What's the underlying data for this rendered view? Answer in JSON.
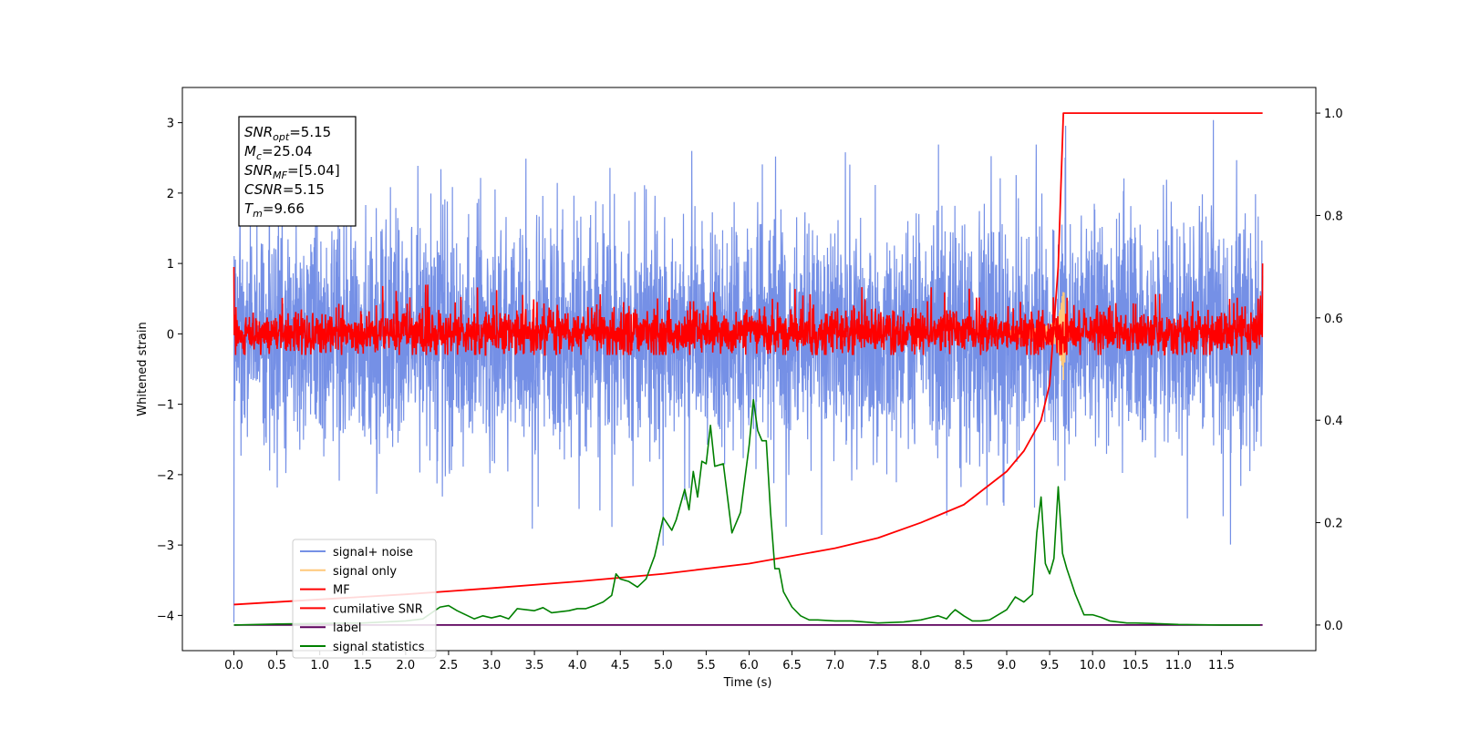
{
  "chart_data": {
    "type": "line",
    "title": "",
    "xlabel": "Time (s)",
    "ylabel": "Whitened strain",
    "xlim": [
      -0.6,
      12.6
    ],
    "ylim": [
      -4.5,
      3.5
    ],
    "y2lim": [
      -0.05,
      1.05
    ],
    "x_ticks": [
      0.0,
      0.5,
      1.0,
      1.5,
      2.0,
      2.5,
      3.0,
      3.5,
      4.0,
      4.5,
      5.0,
      5.5,
      6.0,
      6.5,
      7.0,
      7.5,
      8.0,
      8.5,
      9.0,
      9.5,
      10.0,
      10.5,
      11.0,
      11.5
    ],
    "x_tick_labels": [
      "0.0",
      "0.5",
      "1.0",
      "1.5",
      "2.0",
      "2.5",
      "3.0",
      "3.5",
      "4.0",
      "4.5",
      "5.0",
      "5.5",
      "6.0",
      "6.5",
      "7.0",
      "7.5",
      "8.0",
      "8.5",
      "9.0",
      "9.5",
      "10.0",
      "10.5",
      "11.0",
      "11.5"
    ],
    "y_ticks": [
      -4,
      -3,
      -2,
      -1,
      0,
      1,
      2,
      3
    ],
    "y_tick_labels": [
      "−4",
      "−3",
      "−2",
      "−1",
      "0",
      "1",
      "2",
      "3"
    ],
    "y2_ticks": [
      0.0,
      0.2,
      0.4,
      0.6,
      0.8,
      1.0
    ],
    "y2_tick_labels": [
      "0.0",
      "0.2",
      "0.4",
      "0.6",
      "0.8",
      "1.0"
    ],
    "grid": false,
    "legend_position": "lower-left",
    "colors": {
      "signal_noise": "#7590e6",
      "signal_only": "#ffc87a",
      "mf": "#ff0000",
      "cumulative": "#ff0000",
      "label": "#5c005c",
      "stats": "#008000"
    },
    "annotation": {
      "lines": [
        {
          "main": "SNR",
          "sub": "opt",
          "value": "=5.15"
        },
        {
          "main": "M",
          "sub": "c",
          "value": "=25.04"
        },
        {
          "main": "SNR",
          "sub": "MF",
          "value": "=[5.04]"
        },
        {
          "main": "CSNR",
          "sub": "",
          "value": "=5.15"
        },
        {
          "main": "T",
          "sub": "m",
          "value": "=9.66"
        }
      ]
    },
    "series": [
      {
        "name": "signal+ noise",
        "key": "signal_noise",
        "axis": "left",
        "kind": "noise",
        "t_start": 0.0,
        "t_end": 11.98,
        "typical_range": [
          -1.6,
          1.5
        ],
        "extreme_range": [
          -4.1,
          3.2
        ]
      },
      {
        "name": "signal only",
        "key": "signal_only",
        "axis": "left",
        "kind": "chirp",
        "peak_time": 9.66,
        "peak_amplitude": 0.8
      },
      {
        "name": "MF",
        "key": "mf",
        "axis": "left",
        "kind": "noise",
        "t_start": 0.0,
        "t_end": 11.98,
        "typical_range": [
          -0.3,
          0.5
        ],
        "extreme_range": [
          -0.5,
          0.95
        ]
      },
      {
        "name": "cumilative SNR",
        "key": "cumulative",
        "axis": "right",
        "x": [
          0.0,
          1.0,
          2.0,
          3.0,
          4.0,
          5.0,
          6.0,
          7.0,
          7.5,
          8.0,
          8.5,
          9.0,
          9.2,
          9.4,
          9.5,
          9.6,
          9.66,
          9.7,
          11.98
        ],
        "y": [
          0.04,
          0.05,
          0.06,
          0.072,
          0.085,
          0.1,
          0.12,
          0.15,
          0.17,
          0.2,
          0.235,
          0.3,
          0.34,
          0.4,
          0.47,
          0.7,
          1.0,
          1.0,
          1.0
        ]
      },
      {
        "name": "label",
        "key": "label",
        "axis": "right",
        "x": [
          0.0,
          11.98
        ],
        "y": [
          0.0,
          0.0
        ]
      },
      {
        "name": "signal statistics",
        "key": "stats",
        "axis": "right",
        "x": [
          0.0,
          0.5,
          1.0,
          1.5,
          2.0,
          2.2,
          2.4,
          2.5,
          2.6,
          2.7,
          2.8,
          2.9,
          3.0,
          3.1,
          3.2,
          3.3,
          3.4,
          3.5,
          3.6,
          3.7,
          3.8,
          3.9,
          4.0,
          4.1,
          4.2,
          4.3,
          4.4,
          4.45,
          4.5,
          4.6,
          4.7,
          4.8,
          4.9,
          5.0,
          5.1,
          5.15,
          5.2,
          5.25,
          5.3,
          5.35,
          5.4,
          5.45,
          5.5,
          5.55,
          5.6,
          5.7,
          5.8,
          5.85,
          5.9,
          6.0,
          6.05,
          6.1,
          6.15,
          6.2,
          6.25,
          6.3,
          6.35,
          6.4,
          6.5,
          6.6,
          6.7,
          6.8,
          7.0,
          7.2,
          7.5,
          7.8,
          8.0,
          8.2,
          8.3,
          8.35,
          8.4,
          8.5,
          8.6,
          8.7,
          8.8,
          8.9,
          9.0,
          9.1,
          9.2,
          9.3,
          9.35,
          9.4,
          9.45,
          9.5,
          9.55,
          9.6,
          9.65,
          9.7,
          9.8,
          9.9,
          10.0,
          10.1,
          10.2,
          10.3,
          10.4,
          10.5,
          10.7,
          11.0,
          11.5,
          11.95
        ],
        "y": [
          0.0,
          0.002,
          0.003,
          0.004,
          0.008,
          0.012,
          0.035,
          0.038,
          0.028,
          0.02,
          0.012,
          0.018,
          0.014,
          0.018,
          0.012,
          0.032,
          0.03,
          0.028,
          0.034,
          0.024,
          0.026,
          0.028,
          0.032,
          0.032,
          0.038,
          0.045,
          0.058,
          0.1,
          0.09,
          0.085,
          0.074,
          0.09,
          0.135,
          0.21,
          0.185,
          0.205,
          0.235,
          0.265,
          0.225,
          0.3,
          0.25,
          0.32,
          0.315,
          0.39,
          0.31,
          0.315,
          0.18,
          0.2,
          0.22,
          0.35,
          0.44,
          0.38,
          0.36,
          0.36,
          0.22,
          0.11,
          0.11,
          0.065,
          0.035,
          0.018,
          0.01,
          0.01,
          0.008,
          0.008,
          0.004,
          0.006,
          0.01,
          0.018,
          0.012,
          0.022,
          0.03,
          0.018,
          0.008,
          0.008,
          0.01,
          0.02,
          0.03,
          0.055,
          0.045,
          0.06,
          0.18,
          0.25,
          0.12,
          0.1,
          0.13,
          0.27,
          0.14,
          0.11,
          0.06,
          0.02,
          0.02,
          0.015,
          0.008,
          0.006,
          0.004,
          0.004,
          0.003,
          0.001,
          0.0,
          0.0
        ]
      }
    ]
  }
}
